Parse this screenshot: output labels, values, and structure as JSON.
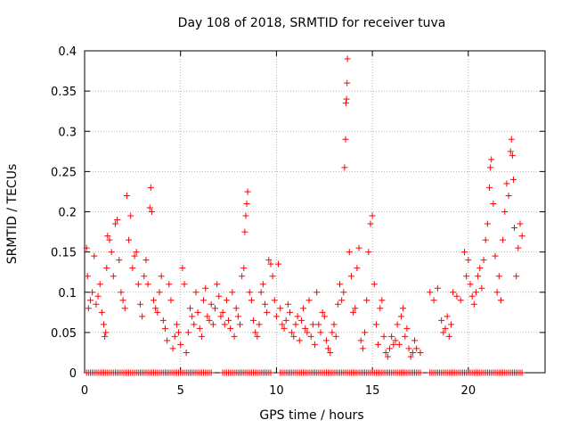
{
  "chart_data": {
    "type": "scatter",
    "title": "Day 108 of 2018, SRMTID for receiver tuva",
    "xlabel": "GPS time / hours",
    "ylabel": "SRMTID / TECUs",
    "xlim": [
      0,
      24
    ],
    "ylim": [
      0,
      0.4
    ],
    "xticks": [
      0,
      5,
      10,
      15,
      20
    ],
    "xtick_labels": [
      "0",
      "5",
      "10",
      "15",
      "20"
    ],
    "yticks": [
      0,
      0.05,
      0.1,
      0.15,
      0.2,
      0.25,
      0.3,
      0.35,
      0.4
    ],
    "ytick_labels": [
      "0",
      "0.05",
      "0.1",
      "0.15",
      "0.2",
      "0.25",
      "0.3",
      "0.35",
      "0.4"
    ],
    "grid": true,
    "marker": "plus",
    "color": "#ff0000",
    "series": [
      {
        "name": "SRMTID",
        "points": [
          [
            0.1,
            0.155
          ],
          [
            0.15,
            0.12
          ],
          [
            0.2,
            0.08
          ],
          [
            0.3,
            0.09
          ],
          [
            0.4,
            0.1
          ],
          [
            0.5,
            0.145
          ],
          [
            0.6,
            0.085
          ],
          [
            0.7,
            0.095
          ],
          [
            0.8,
            0.11
          ],
          [
            0.9,
            0.075
          ],
          [
            1.0,
            0.06
          ],
          [
            1.05,
            0.045
          ],
          [
            1.1,
            0.05
          ],
          [
            1.15,
            0.13
          ],
          [
            1.2,
            0.17
          ],
          [
            1.3,
            0.165
          ],
          [
            1.4,
            0.15
          ],
          [
            1.5,
            0.12
          ],
          [
            1.6,
            0.185
          ],
          [
            1.7,
            0.19
          ],
          [
            1.8,
            0.14
          ],
          [
            1.9,
            0.1
          ],
          [
            2.0,
            0.09
          ],
          [
            2.1,
            0.08
          ],
          [
            2.2,
            0.22
          ],
          [
            2.3,
            0.165
          ],
          [
            2.4,
            0.195
          ],
          [
            2.5,
            0.13
          ],
          [
            2.6,
            0.145
          ],
          [
            2.7,
            0.15
          ],
          [
            2.8,
            0.11
          ],
          [
            2.9,
            0.085
          ],
          [
            3.0,
            0.07
          ],
          [
            3.1,
            0.12
          ],
          [
            3.2,
            0.14
          ],
          [
            3.3,
            0.11
          ],
          [
            3.4,
            0.205
          ],
          [
            3.45,
            0.23
          ],
          [
            3.5,
            0.2
          ],
          [
            3.6,
            0.09
          ],
          [
            3.7,
            0.08
          ],
          [
            3.8,
            0.075
          ],
          [
            3.9,
            0.1
          ],
          [
            4.0,
            0.12
          ],
          [
            4.1,
            0.065
          ],
          [
            4.2,
            0.055
          ],
          [
            4.3,
            0.04
          ],
          [
            4.4,
            0.11
          ],
          [
            4.5,
            0.09
          ],
          [
            4.6,
            0.03
          ],
          [
            4.7,
            0.045
          ],
          [
            4.8,
            0.06
          ],
          [
            4.9,
            0.05
          ],
          [
            5.0,
            0.035
          ],
          [
            5.1,
            0.13
          ],
          [
            5.2,
            0.11
          ],
          [
            5.3,
            0.025
          ],
          [
            5.4,
            0.05
          ],
          [
            5.5,
            0.08
          ],
          [
            5.6,
            0.07
          ],
          [
            5.7,
            0.06
          ],
          [
            5.8,
            0.1
          ],
          [
            5.9,
            0.075
          ],
          [
            6.0,
            0.055
          ],
          [
            6.1,
            0.045
          ],
          [
            6.2,
            0.09
          ],
          [
            6.3,
            0.105
          ],
          [
            6.4,
            0.07
          ],
          [
            6.5,
            0.065
          ],
          [
            6.6,
            0.085
          ],
          [
            6.7,
            0.06
          ],
          [
            6.8,
            0.08
          ],
          [
            6.9,
            0.11
          ],
          [
            7.0,
            0.095
          ],
          [
            7.1,
            0.07
          ],
          [
            7.2,
            0.075
          ],
          [
            7.3,
            0.06
          ],
          [
            7.4,
            0.09
          ],
          [
            7.5,
            0.065
          ],
          [
            7.6,
            0.055
          ],
          [
            7.7,
            0.1
          ],
          [
            7.8,
            0.045
          ],
          [
            7.9,
            0.08
          ],
          [
            8.0,
            0.07
          ],
          [
            8.1,
            0.06
          ],
          [
            8.2,
            0.12
          ],
          [
            8.3,
            0.13
          ],
          [
            8.35,
            0.175
          ],
          [
            8.4,
            0.195
          ],
          [
            8.45,
            0.21
          ],
          [
            8.5,
            0.225
          ],
          [
            8.6,
            0.1
          ],
          [
            8.7,
            0.09
          ],
          [
            8.8,
            0.065
          ],
          [
            8.9,
            0.05
          ],
          [
            9.0,
            0.045
          ],
          [
            9.1,
            0.06
          ],
          [
            9.2,
            0.1
          ],
          [
            9.3,
            0.11
          ],
          [
            9.4,
            0.085
          ],
          [
            9.5,
            0.075
          ],
          [
            9.6,
            0.14
          ],
          [
            9.7,
            0.135
          ],
          [
            9.8,
            0.12
          ],
          [
            9.9,
            0.09
          ],
          [
            10.0,
            0.07
          ],
          [
            10.1,
            0.135
          ],
          [
            10.2,
            0.08
          ],
          [
            10.3,
            0.06
          ],
          [
            10.4,
            0.055
          ],
          [
            10.5,
            0.065
          ],
          [
            10.6,
            0.085
          ],
          [
            10.7,
            0.075
          ],
          [
            10.8,
            0.05
          ],
          [
            10.9,
            0.045
          ],
          [
            11.0,
            0.06
          ],
          [
            11.1,
            0.07
          ],
          [
            11.2,
            0.04
          ],
          [
            11.3,
            0.065
          ],
          [
            11.4,
            0.08
          ],
          [
            11.5,
            0.055
          ],
          [
            11.6,
            0.05
          ],
          [
            11.7,
            0.09
          ],
          [
            11.8,
            0.045
          ],
          [
            11.9,
            0.06
          ],
          [
            12.0,
            0.035
          ],
          [
            12.1,
            0.1
          ],
          [
            12.2,
            0.06
          ],
          [
            12.3,
            0.05
          ],
          [
            12.4,
            0.075
          ],
          [
            12.5,
            0.07
          ],
          [
            12.6,
            0.04
          ],
          [
            12.7,
            0.03
          ],
          [
            12.8,
            0.025
          ],
          [
            12.9,
            0.05
          ],
          [
            13.0,
            0.06
          ],
          [
            13.1,
            0.045
          ],
          [
            13.2,
            0.085
          ],
          [
            13.3,
            0.11
          ],
          [
            13.4,
            0.09
          ],
          [
            13.5,
            0.1
          ],
          [
            13.55,
            0.255
          ],
          [
            13.6,
            0.29
          ],
          [
            13.62,
            0.335
          ],
          [
            13.65,
            0.34
          ],
          [
            13.68,
            0.36
          ],
          [
            13.7,
            0.39
          ],
          [
            13.8,
            0.15
          ],
          [
            13.9,
            0.12
          ],
          [
            14.0,
            0.075
          ],
          [
            14.1,
            0.08
          ],
          [
            14.2,
            0.13
          ],
          [
            14.3,
            0.155
          ],
          [
            14.4,
            0.04
          ],
          [
            14.5,
            0.03
          ],
          [
            14.6,
            0.05
          ],
          [
            14.7,
            0.09
          ],
          [
            14.8,
            0.15
          ],
          [
            14.9,
            0.185
          ],
          [
            15.0,
            0.195
          ],
          [
            15.1,
            0.11
          ],
          [
            15.2,
            0.06
          ],
          [
            15.3,
            0.035
          ],
          [
            15.4,
            0.08
          ],
          [
            15.5,
            0.09
          ],
          [
            15.6,
            0.045
          ],
          [
            15.7,
            0.025
          ],
          [
            15.8,
            0.02
          ],
          [
            15.9,
            0.03
          ],
          [
            16.0,
            0.045
          ],
          [
            16.1,
            0.035
          ],
          [
            16.2,
            0.04
          ],
          [
            16.3,
            0.06
          ],
          [
            16.4,
            0.035
          ],
          [
            16.5,
            0.07
          ],
          [
            16.6,
            0.08
          ],
          [
            16.7,
            0.045
          ],
          [
            16.8,
            0.055
          ],
          [
            16.9,
            0.03
          ],
          [
            17.0,
            0.02
          ],
          [
            17.1,
            0.025
          ],
          [
            17.2,
            0.04
          ],
          [
            17.3,
            0.03
          ],
          [
            17.5,
            0.025
          ],
          [
            18.0,
            0.1
          ],
          [
            18.2,
            0.09
          ],
          [
            18.4,
            0.105
          ],
          [
            18.6,
            0.065
          ],
          [
            18.7,
            0.05
          ],
          [
            18.8,
            0.055
          ],
          [
            18.9,
            0.07
          ],
          [
            19.0,
            0.045
          ],
          [
            19.1,
            0.06
          ],
          [
            19.2,
            0.1
          ],
          [
            19.4,
            0.095
          ],
          [
            19.6,
            0.09
          ],
          [
            19.8,
            0.15
          ],
          [
            19.9,
            0.12
          ],
          [
            20.0,
            0.14
          ],
          [
            20.1,
            0.11
          ],
          [
            20.2,
            0.095
          ],
          [
            20.3,
            0.085
          ],
          [
            20.4,
            0.1
          ],
          [
            20.5,
            0.12
          ],
          [
            20.6,
            0.13
          ],
          [
            20.7,
            0.105
          ],
          [
            20.8,
            0.14
          ],
          [
            20.9,
            0.165
          ],
          [
            21.0,
            0.185
          ],
          [
            21.1,
            0.23
          ],
          [
            21.15,
            0.255
          ],
          [
            21.2,
            0.265
          ],
          [
            21.3,
            0.21
          ],
          [
            21.4,
            0.145
          ],
          [
            21.5,
            0.1
          ],
          [
            21.6,
            0.12
          ],
          [
            21.7,
            0.09
          ],
          [
            21.8,
            0.165
          ],
          [
            21.9,
            0.2
          ],
          [
            22.0,
            0.235
          ],
          [
            22.1,
            0.22
          ],
          [
            22.2,
            0.275
          ],
          [
            22.25,
            0.29
          ],
          [
            22.3,
            0.27
          ],
          [
            22.35,
            0.24
          ],
          [
            22.4,
            0.18
          ],
          [
            22.5,
            0.12
          ],
          [
            22.6,
            0.155
          ],
          [
            22.7,
            0.185
          ],
          [
            22.8,
            0.17
          ]
        ],
        "zero_points_x": [
          0.1,
          0.2,
          0.3,
          0.4,
          0.5,
          0.6,
          0.7,
          0.8,
          0.9,
          1.0,
          1.1,
          1.2,
          1.3,
          1.4,
          1.5,
          1.6,
          1.7,
          1.8,
          1.9,
          2.0,
          2.1,
          2.2,
          2.3,
          2.4,
          2.5,
          2.6,
          2.7,
          2.8,
          2.9,
          3.0,
          3.1,
          3.2,
          3.3,
          3.4,
          3.5,
          3.6,
          3.7,
          3.8,
          3.9,
          4.0,
          4.1,
          4.2,
          4.3,
          4.4,
          4.5,
          4.6,
          4.7,
          4.8,
          4.9,
          5.0,
          5.1,
          5.2,
          5.3,
          5.4,
          5.5,
          5.6,
          5.7,
          5.8,
          5.9,
          6.0,
          6.1,
          6.2,
          6.3,
          6.4,
          6.5,
          6.6,
          7.2,
          7.3,
          7.4,
          7.5,
          7.6,
          7.7,
          7.8,
          7.9,
          8.0,
          8.1,
          8.2,
          8.3,
          8.4,
          8.5,
          8.6,
          8.7,
          8.8,
          8.9,
          9.0,
          9.1,
          9.2,
          9.3,
          9.4,
          9.5,
          9.6,
          9.7,
          10.2,
          10.3,
          10.4,
          10.5,
          10.6,
          10.7,
          10.8,
          10.9,
          11.0,
          11.1,
          11.2,
          11.3,
          11.4,
          11.5,
          11.6,
          11.7,
          11.8,
          11.9,
          12.0,
          12.1,
          12.2,
          12.3,
          12.4,
          12.5,
          12.6,
          12.7,
          12.8,
          12.9,
          13.0,
          13.1,
          13.2,
          13.3,
          13.4,
          13.5,
          13.6,
          13.7,
          13.8,
          13.9,
          14.0,
          14.1,
          14.2,
          14.3,
          14.4,
          14.5,
          14.6,
          14.7,
          14.8,
          14.9,
          15.0,
          15.1,
          15.2,
          15.3,
          15.4,
          15.5,
          15.6,
          15.7,
          15.8,
          15.9,
          16.0,
          16.1,
          16.2,
          16.3,
          16.4,
          16.5,
          16.6,
          16.7,
          16.8,
          16.9,
          17.0,
          17.1,
          17.2,
          17.3,
          17.4,
          17.5,
          18.0,
          18.1,
          18.2,
          18.3,
          18.4,
          18.5,
          18.6,
          18.7,
          18.8,
          18.9,
          19.0,
          19.1,
          19.2,
          19.3,
          19.4,
          19.5,
          19.6,
          19.7,
          19.8,
          19.9,
          20.0,
          20.1,
          20.2,
          20.3,
          20.4,
          20.5,
          20.6,
          20.7,
          20.8,
          20.9,
          21.0,
          21.1,
          21.2,
          21.3,
          21.4,
          21.5,
          21.6,
          21.7,
          21.8,
          21.9,
          22.0,
          22.1,
          22.2,
          22.3,
          22.4,
          22.5,
          22.6,
          22.7,
          22.8
        ]
      }
    ]
  }
}
